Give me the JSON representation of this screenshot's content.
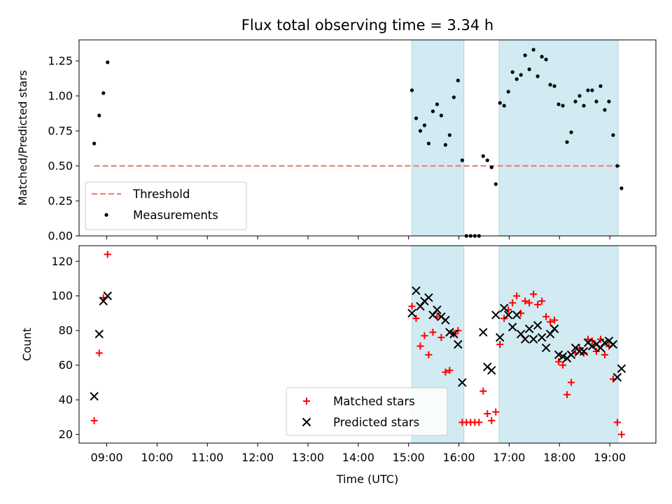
{
  "chart_data": [
    {
      "type": "scatter",
      "title": "Flux total observing time = 3.34 h",
      "xlabel": "",
      "ylabel": "Matched/Predicted stars",
      "xlim": [
        "08:27",
        "19:55"
      ],
      "ylim": [
        0,
        1.4
      ],
      "yticks": [
        0.0,
        0.25,
        0.5,
        0.75,
        1.0,
        1.25
      ],
      "ytick_labels": [
        "0.00",
        "0.25",
        "0.50",
        "0.75",
        "1.00",
        "1.25"
      ],
      "legend_position": "lower-left",
      "shaded_intervals": [
        [
          "15:04",
          "16:06"
        ],
        [
          "16:48",
          "19:10"
        ]
      ],
      "shade_color": "#add8e6",
      "threshold": {
        "name": "Threshold",
        "value": 0.5,
        "x_range": [
          "08:45",
          "19:15"
        ],
        "color": "#f08080",
        "style": "dashed"
      },
      "series": [
        {
          "name": "Measurements",
          "color": "#000000",
          "marker": "dot",
          "points": [
            [
              "08:45",
              0.66
            ],
            [
              "08:51",
              0.86
            ],
            [
              "08:56",
              1.02
            ],
            [
              "09:01",
              1.24
            ],
            [
              "15:04",
              1.04
            ],
            [
              "15:09",
              0.84
            ],
            [
              "15:14",
              0.75
            ],
            [
              "15:19",
              0.79
            ],
            [
              "15:24",
              0.66
            ],
            [
              "15:29",
              0.89
            ],
            [
              "15:34",
              0.94
            ],
            [
              "15:39",
              0.86
            ],
            [
              "15:44",
              0.65
            ],
            [
              "15:49",
              0.72
            ],
            [
              "15:54",
              0.99
            ],
            [
              "15:59",
              1.11
            ],
            [
              "16:04",
              0.54
            ],
            [
              "16:09",
              0.0
            ],
            [
              "16:14",
              0.0
            ],
            [
              "16:19",
              0.0
            ],
            [
              "16:24",
              0.0
            ],
            [
              "16:29",
              0.57
            ],
            [
              "16:34",
              0.54
            ],
            [
              "16:39",
              0.49
            ],
            [
              "16:44",
              0.37
            ],
            [
              "16:49",
              0.95
            ],
            [
              "16:54",
              0.93
            ],
            [
              "16:59",
              1.03
            ],
            [
              "17:04",
              1.17
            ],
            [
              "17:09",
              1.12
            ],
            [
              "17:14",
              1.15
            ],
            [
              "17:19",
              1.29
            ],
            [
              "17:24",
              1.19
            ],
            [
              "17:29",
              1.33
            ],
            [
              "17:34",
              1.14
            ],
            [
              "17:39",
              1.28
            ],
            [
              "17:44",
              1.26
            ],
            [
              "17:49",
              1.08
            ],
            [
              "17:54",
              1.07
            ],
            [
              "17:59",
              0.94
            ],
            [
              "18:04",
              0.93
            ],
            [
              "18:09",
              0.67
            ],
            [
              "18:14",
              0.74
            ],
            [
              "18:19",
              0.96
            ],
            [
              "18:24",
              1.0
            ],
            [
              "18:29",
              0.93
            ],
            [
              "18:34",
              1.04
            ],
            [
              "18:39",
              1.04
            ],
            [
              "18:44",
              0.96
            ],
            [
              "18:49",
              1.07
            ],
            [
              "18:54",
              0.9
            ],
            [
              "18:59",
              0.96
            ],
            [
              "19:04",
              0.72
            ],
            [
              "19:09",
              0.5
            ],
            [
              "19:14",
              0.34
            ]
          ]
        }
      ]
    },
    {
      "type": "scatter",
      "title": "",
      "xlabel": "Time (UTC)",
      "ylabel": "Count",
      "xlim": [
        "08:27",
        "19:55"
      ],
      "ylim": [
        15,
        129
      ],
      "yticks": [
        20,
        40,
        60,
        80,
        100,
        120
      ],
      "ytick_labels": [
        "20",
        "40",
        "60",
        "80",
        "100",
        "120"
      ],
      "xticks": [
        "09:00",
        "10:00",
        "11:00",
        "12:00",
        "13:00",
        "14:00",
        "15:00",
        "16:00",
        "17:00",
        "18:00",
        "19:00"
      ],
      "legend_position": "lower-center",
      "shaded_intervals": [
        [
          "15:04",
          "16:06"
        ],
        [
          "16:48",
          "19:10"
        ]
      ],
      "shade_color": "#add8e6",
      "series": [
        {
          "name": "Matched stars",
          "color": "#ff0000",
          "marker": "plus",
          "points": [
            [
              "08:45",
              28
            ],
            [
              "08:51",
              67
            ],
            [
              "08:56",
              99
            ],
            [
              "09:01",
              124
            ],
            [
              "15:04",
              94
            ],
            [
              "15:09",
              87
            ],
            [
              "15:14",
              71
            ],
            [
              "15:19",
              77
            ],
            [
              "15:24",
              66
            ],
            [
              "15:29",
              79
            ],
            [
              "15:34",
              88
            ],
            [
              "15:39",
              76
            ],
            [
              "15:44",
              56
            ],
            [
              "15:49",
              57
            ],
            [
              "15:54",
              78
            ],
            [
              "15:59",
              80
            ],
            [
              "16:04",
              27
            ],
            [
              "16:09",
              27
            ],
            [
              "16:14",
              27
            ],
            [
              "16:19",
              27
            ],
            [
              "16:24",
              27
            ],
            [
              "16:29",
              45
            ],
            [
              "16:34",
              32
            ],
            [
              "16:39",
              28
            ],
            [
              "16:44",
              33
            ],
            [
              "16:49",
              72
            ],
            [
              "16:54",
              87
            ],
            [
              "16:59",
              92
            ],
            [
              "17:04",
              96
            ],
            [
              "17:09",
              100
            ],
            [
              "17:14",
              90
            ],
            [
              "17:19",
              97
            ],
            [
              "17:24",
              96
            ],
            [
              "17:29",
              101
            ],
            [
              "17:34",
              95
            ],
            [
              "17:39",
              97
            ],
            [
              "17:44",
              88
            ],
            [
              "17:49",
              85
            ],
            [
              "17:54",
              86
            ],
            [
              "17:59",
              62
            ],
            [
              "18:04",
              60
            ],
            [
              "18:09",
              43
            ],
            [
              "18:14",
              50
            ],
            [
              "18:19",
              67
            ],
            [
              "18:24",
              70
            ],
            [
              "18:29",
              67
            ],
            [
              "18:34",
              75
            ],
            [
              "18:39",
              74
            ],
            [
              "18:44",
              68
            ],
            [
              "18:49",
              75
            ],
            [
              "18:54",
              66
            ],
            [
              "18:59",
              71
            ],
            [
              "19:04",
              52
            ],
            [
              "19:09",
              27
            ],
            [
              "19:14",
              20
            ]
          ]
        },
        {
          "name": "Predicted stars",
          "color": "#000000",
          "marker": "x",
          "points": [
            [
              "08:45",
              42
            ],
            [
              "08:51",
              78
            ],
            [
              "08:56",
              97
            ],
            [
              "09:01",
              100
            ],
            [
              "15:04",
              90
            ],
            [
              "15:09",
              103
            ],
            [
              "15:14",
              94
            ],
            [
              "15:19",
              97
            ],
            [
              "15:24",
              99
            ],
            [
              "15:29",
              89
            ],
            [
              "15:34",
              92
            ],
            [
              "15:39",
              88
            ],
            [
              "15:44",
              86
            ],
            [
              "15:49",
              79
            ],
            [
              "15:54",
              78
            ],
            [
              "15:59",
              72
            ],
            [
              "16:04",
              50
            ],
            [
              "16:29",
              79
            ],
            [
              "16:34",
              59
            ],
            [
              "16:39",
              57
            ],
            [
              "16:44",
              89
            ],
            [
              "16:49",
              76
            ],
            [
              "16:54",
              93
            ],
            [
              "16:59",
              89
            ],
            [
              "17:04",
              82
            ],
            [
              "17:09",
              89
            ],
            [
              "17:14",
              78
            ],
            [
              "17:19",
              75
            ],
            [
              "17:24",
              81
            ],
            [
              "17:29",
              75
            ],
            [
              "17:34",
              83
            ],
            [
              "17:39",
              76
            ],
            [
              "17:44",
              70
            ],
            [
              "17:49",
              78
            ],
            [
              "17:54",
              81
            ],
            [
              "17:59",
              66
            ],
            [
              "18:04",
              65
            ],
            [
              "18:09",
              64
            ],
            [
              "18:14",
              66
            ],
            [
              "18:19",
              70
            ],
            [
              "18:24",
              68
            ],
            [
              "18:29",
              68
            ],
            [
              "18:34",
              73
            ],
            [
              "18:39",
              71
            ],
            [
              "18:44",
              72
            ],
            [
              "18:49",
              70
            ],
            [
              "18:54",
              73
            ],
            [
              "18:59",
              74
            ],
            [
              "19:04",
              72
            ],
            [
              "19:09",
              53
            ],
            [
              "19:14",
              58
            ]
          ]
        }
      ]
    }
  ]
}
